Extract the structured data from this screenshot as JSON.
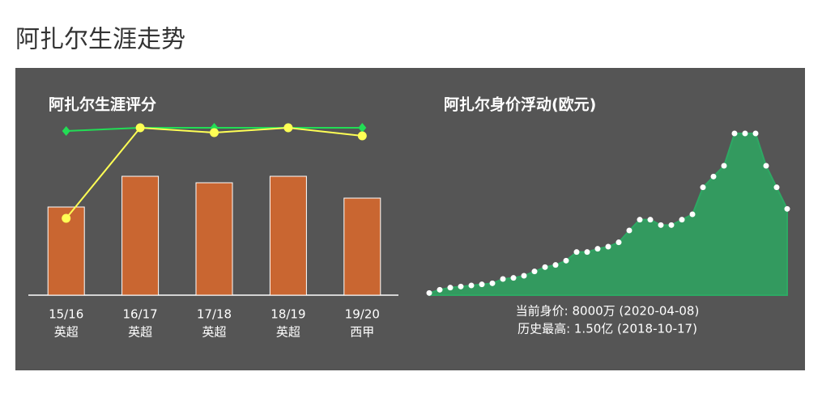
{
  "page_title": "阿扎尔生涯走势",
  "chart_data": [
    {
      "type": "bar-line",
      "title": "阿扎尔生涯评分",
      "categories": [
        [
          "15/16",
          "英超"
        ],
        [
          "16/17",
          "英超"
        ],
        [
          "17/18",
          "英超"
        ],
        [
          "18/19",
          "英超"
        ],
        [
          "19/20",
          "西甲"
        ]
      ],
      "values": [
        109,
        147,
        139,
        147,
        120
      ],
      "color": "#c96631",
      "series": [
        {
          "color": "#22dd55",
          "marker": "diamond",
          "values": [
            203,
            207,
            207,
            207,
            207
          ]
        },
        {
          "color": "#ffff55",
          "marker": "circle",
          "values": [
            95,
            207,
            201,
            207,
            197
          ]
        }
      ],
      "ylim": [
        0,
        220
      ]
    },
    {
      "type": "area",
      "title": "阿扎尔身价浮动(欧元)",
      "values": [
        200,
        500,
        700,
        800,
        900,
        1000,
        1100,
        1500,
        1600,
        1800,
        2200,
        2600,
        2800,
        3200,
        4000,
        4000,
        4300,
        4500,
        4900,
        6000,
        7000,
        7000,
        6500,
        6500,
        7000,
        7500,
        10000,
        11000,
        12000,
        15000,
        15000,
        15000,
        12000,
        10000,
        8000
      ],
      "color": "#339a5f",
      "ylim": [
        0,
        15000
      ],
      "annotations": [
        "当前身价: 8000万 (2020-04-08)",
        "历史最高: 1.50亿 (2018-10-17)"
      ]
    }
  ]
}
